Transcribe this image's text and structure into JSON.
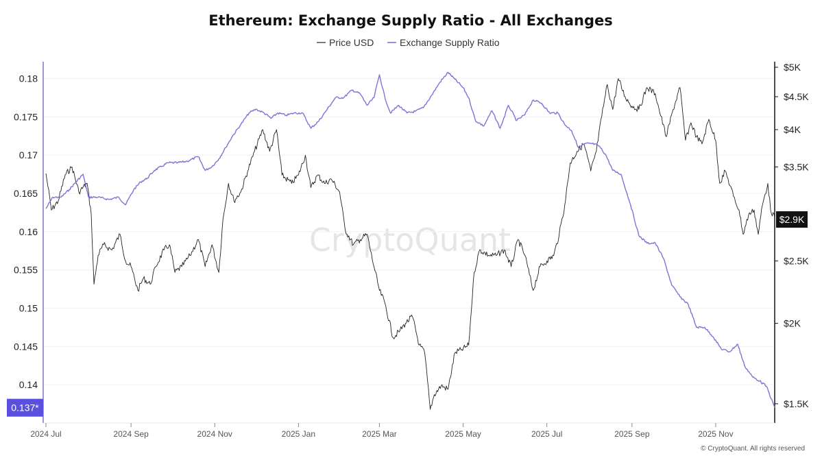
{
  "chart_data": {
    "type": "line",
    "title": "Ethereum: Exchange Supply Ratio - All Exchanges",
    "legend": {
      "placement": "top-center",
      "entries": [
        "Price USD",
        "Exchange Supply Ratio"
      ]
    },
    "watermark": "CryptoQuant",
    "credit": "© CryptoQuant. All rights reserved",
    "x_axis": {
      "type": "date",
      "range": [
        "2024-06-29",
        "2025-12-14"
      ],
      "ticks": [
        {
          "date": "2024-07-01",
          "label": "2024 Jul"
        },
        {
          "date": "2024-09-01",
          "label": "2024 Sep"
        },
        {
          "date": "2024-11-01",
          "label": "2024 Nov"
        },
        {
          "date": "2025-01-01",
          "label": "2025 Jan"
        },
        {
          "date": "2025-03-01",
          "label": "2025 Mar"
        },
        {
          "date": "2025-05-01",
          "label": "2025 May"
        },
        {
          "date": "2025-07-01",
          "label": "2025 Jul"
        },
        {
          "date": "2025-09-01",
          "label": "2025 Sep"
        },
        {
          "date": "2025-11-01",
          "label": "2025 Nov"
        }
      ]
    },
    "y_left": {
      "range": [
        0.135,
        0.1822
      ],
      "ticks": [
        {
          "value": 0.18,
          "label": "0.18"
        },
        {
          "value": 0.175,
          "label": "0.175"
        },
        {
          "value": 0.17,
          "label": "0.17"
        },
        {
          "value": 0.165,
          "label": "0.165"
        },
        {
          "value": 0.16,
          "label": "0.16"
        },
        {
          "value": 0.155,
          "label": "0.155"
        },
        {
          "value": 0.15,
          "label": "0.15"
        },
        {
          "value": 0.145,
          "label": "0.145"
        },
        {
          "value": 0.14,
          "label": "0.14"
        }
      ],
      "current": {
        "value": 0.137,
        "label": "0.137*"
      }
    },
    "y_right": {
      "scale": "log",
      "range": [
        1400,
        5100
      ],
      "ticks": [
        {
          "value": 5000,
          "label": "$5K"
        },
        {
          "value": 4500,
          "label": "$4.5K"
        },
        {
          "value": 4000,
          "label": "$4K"
        },
        {
          "value": 3500,
          "label": "$3.5K"
        },
        {
          "value": 2500,
          "label": "$2.5K"
        },
        {
          "value": 2000,
          "label": "$2K"
        },
        {
          "value": 1500,
          "label": "$1.5K"
        }
      ],
      "current": {
        "value": 2900,
        "label": "$2.9K"
      }
    },
    "colors": {
      "price": "#222222",
      "ratio": "#7b74d8",
      "badge_left": "#5b4fe0",
      "badge_right": "#111111"
    },
    "series": [
      {
        "name": "Price USD",
        "axis": "right",
        "points": [
          [
            "2024-07-01",
            3420
          ],
          [
            "2024-07-05",
            3000
          ],
          [
            "2024-07-10",
            3100
          ],
          [
            "2024-07-15",
            3400
          ],
          [
            "2024-07-20",
            3500
          ],
          [
            "2024-07-25",
            3200
          ],
          [
            "2024-07-31",
            3300
          ],
          [
            "2024-08-03",
            2950
          ],
          [
            "2024-08-05",
            2300
          ],
          [
            "2024-08-08",
            2550
          ],
          [
            "2024-08-12",
            2650
          ],
          [
            "2024-08-18",
            2600
          ],
          [
            "2024-08-24",
            2750
          ],
          [
            "2024-08-28",
            2500
          ],
          [
            "2024-09-01",
            2450
          ],
          [
            "2024-09-06",
            2250
          ],
          [
            "2024-09-10",
            2350
          ],
          [
            "2024-09-15",
            2300
          ],
          [
            "2024-09-19",
            2450
          ],
          [
            "2024-09-25",
            2600
          ],
          [
            "2024-09-29",
            2650
          ],
          [
            "2024-10-03",
            2400
          ],
          [
            "2024-10-08",
            2450
          ],
          [
            "2024-10-14",
            2550
          ],
          [
            "2024-10-20",
            2700
          ],
          [
            "2024-10-25",
            2450
          ],
          [
            "2024-10-30",
            2650
          ],
          [
            "2024-11-04",
            2400
          ],
          [
            "2024-11-07",
            2900
          ],
          [
            "2024-11-11",
            3300
          ],
          [
            "2024-11-15",
            3100
          ],
          [
            "2024-11-20",
            3200
          ],
          [
            "2024-11-25",
            3450
          ],
          [
            "2024-11-30",
            3700
          ],
          [
            "2024-12-06",
            4000
          ],
          [
            "2024-12-11",
            3700
          ],
          [
            "2024-12-16",
            4000
          ],
          [
            "2024-12-20",
            3400
          ],
          [
            "2024-12-27",
            3300
          ],
          [
            "2025-01-01",
            3400
          ],
          [
            "2025-01-06",
            3650
          ],
          [
            "2025-01-10",
            3250
          ],
          [
            "2025-01-15",
            3400
          ],
          [
            "2025-01-20",
            3300
          ],
          [
            "2025-01-25",
            3350
          ],
          [
            "2025-01-31",
            3200
          ],
          [
            "2025-02-04",
            2800
          ],
          [
            "2025-02-10",
            2650
          ],
          [
            "2025-02-15",
            2700
          ],
          [
            "2025-02-20",
            2750
          ],
          [
            "2025-02-25",
            2450
          ],
          [
            "2025-03-01",
            2250
          ],
          [
            "2025-03-05",
            2150
          ],
          [
            "2025-03-11",
            1900
          ],
          [
            "2025-03-16",
            1950
          ],
          [
            "2025-03-20",
            2000
          ],
          [
            "2025-03-25",
            2050
          ],
          [
            "2025-03-30",
            1850
          ],
          [
            "2025-04-03",
            1800
          ],
          [
            "2025-04-07",
            1470
          ],
          [
            "2025-04-10",
            1550
          ],
          [
            "2025-04-15",
            1600
          ],
          [
            "2025-04-20",
            1580
          ],
          [
            "2025-04-25",
            1800
          ],
          [
            "2025-04-30",
            1820
          ],
          [
            "2025-05-05",
            1850
          ],
          [
            "2025-05-09",
            2400
          ],
          [
            "2025-05-13",
            2600
          ],
          [
            "2025-05-20",
            2550
          ],
          [
            "2025-05-25",
            2550
          ],
          [
            "2025-05-31",
            2600
          ],
          [
            "2025-06-05",
            2450
          ],
          [
            "2025-06-10",
            2700
          ],
          [
            "2025-06-15",
            2550
          ],
          [
            "2025-06-21",
            2250
          ],
          [
            "2025-06-26",
            2450
          ],
          [
            "2025-07-01",
            2500
          ],
          [
            "2025-07-06",
            2550
          ],
          [
            "2025-07-10",
            2750
          ],
          [
            "2025-07-14",
            3050
          ],
          [
            "2025-07-18",
            3550
          ],
          [
            "2025-07-23",
            3700
          ],
          [
            "2025-07-28",
            3800
          ],
          [
            "2025-08-02",
            3450
          ],
          [
            "2025-08-06",
            3700
          ],
          [
            "2025-08-10",
            4200
          ],
          [
            "2025-08-14",
            4700
          ],
          [
            "2025-08-18",
            4300
          ],
          [
            "2025-08-22",
            4800
          ],
          [
            "2025-08-27",
            4500
          ],
          [
            "2025-09-01",
            4350
          ],
          [
            "2025-09-06",
            4300
          ],
          [
            "2025-09-12",
            4650
          ],
          [
            "2025-09-18",
            4550
          ],
          [
            "2025-09-22",
            4200
          ],
          [
            "2025-09-26",
            3900
          ],
          [
            "2025-10-01",
            4300
          ],
          [
            "2025-10-06",
            4650
          ],
          [
            "2025-10-10",
            3850
          ],
          [
            "2025-10-14",
            4100
          ],
          [
            "2025-10-18",
            3900
          ],
          [
            "2025-10-22",
            3800
          ],
          [
            "2025-10-27",
            4150
          ],
          [
            "2025-11-01",
            3850
          ],
          [
            "2025-11-04",
            3300
          ],
          [
            "2025-11-08",
            3450
          ],
          [
            "2025-11-14",
            3150
          ],
          [
            "2025-11-18",
            3000
          ],
          [
            "2025-11-21",
            2750
          ],
          [
            "2025-11-25",
            2950
          ],
          [
            "2025-11-29",
            3000
          ],
          [
            "2025-12-02",
            2750
          ],
          [
            "2025-12-05",
            3050
          ],
          [
            "2025-12-09",
            3300
          ],
          [
            "2025-12-11",
            3000
          ],
          [
            "2025-12-14",
            2920
          ]
        ]
      },
      {
        "name": "Exchange Supply Ratio",
        "axis": "left",
        "points": [
          [
            "2024-07-01",
            0.163
          ],
          [
            "2024-07-06",
            0.1645
          ],
          [
            "2024-07-12",
            0.1645
          ],
          [
            "2024-07-18",
            0.1655
          ],
          [
            "2024-07-23",
            0.1665
          ],
          [
            "2024-07-28",
            0.1675
          ],
          [
            "2024-08-01",
            0.1645
          ],
          [
            "2024-08-08",
            0.1645
          ],
          [
            "2024-08-16",
            0.1642
          ],
          [
            "2024-08-23",
            0.1645
          ],
          [
            "2024-08-28",
            0.1635
          ],
          [
            "2024-09-03",
            0.1655
          ],
          [
            "2024-09-08",
            0.1665
          ],
          [
            "2024-09-13",
            0.167
          ],
          [
            "2024-09-18",
            0.168
          ],
          [
            "2024-09-23",
            0.1685
          ],
          [
            "2024-09-28",
            0.169
          ],
          [
            "2024-10-05",
            0.169
          ],
          [
            "2024-10-12",
            0.1692
          ],
          [
            "2024-10-20",
            0.1698
          ],
          [
            "2024-10-25",
            0.168
          ],
          [
            "2024-10-30",
            0.1685
          ],
          [
            "2024-11-04",
            0.1695
          ],
          [
            "2024-11-09",
            0.171
          ],
          [
            "2024-11-14",
            0.1725
          ],
          [
            "2024-11-20",
            0.174
          ],
          [
            "2024-11-26",
            0.1755
          ],
          [
            "2024-12-01",
            0.176
          ],
          [
            "2024-12-07",
            0.1755
          ],
          [
            "2024-12-12",
            0.1748
          ],
          [
            "2024-12-17",
            0.1755
          ],
          [
            "2024-12-23",
            0.1752
          ],
          [
            "2024-12-29",
            0.1755
          ],
          [
            "2025-01-04",
            0.1755
          ],
          [
            "2025-01-10",
            0.1735
          ],
          [
            "2025-01-16",
            0.1745
          ],
          [
            "2025-01-22",
            0.176
          ],
          [
            "2025-01-28",
            0.1775
          ],
          [
            "2025-02-03",
            0.1775
          ],
          [
            "2025-02-09",
            0.1785
          ],
          [
            "2025-02-15",
            0.178
          ],
          [
            "2025-02-20",
            0.1765
          ],
          [
            "2025-02-25",
            0.1775
          ],
          [
            "2025-03-01",
            0.1805
          ],
          [
            "2025-03-05",
            0.1775
          ],
          [
            "2025-03-09",
            0.1755
          ],
          [
            "2025-03-15",
            0.1765
          ],
          [
            "2025-03-21",
            0.1755
          ],
          [
            "2025-03-27",
            0.1757
          ],
          [
            "2025-04-02",
            0.1762
          ],
          [
            "2025-04-08",
            0.1778
          ],
          [
            "2025-04-14",
            0.1795
          ],
          [
            "2025-04-20",
            0.1808
          ],
          [
            "2025-04-25",
            0.1799
          ],
          [
            "2025-05-01",
            0.1788
          ],
          [
            "2025-05-05",
            0.1775
          ],
          [
            "2025-05-10",
            0.1745
          ],
          [
            "2025-05-16",
            0.1738
          ],
          [
            "2025-05-22",
            0.1758
          ],
          [
            "2025-05-28",
            0.1735
          ],
          [
            "2025-06-03",
            0.1765
          ],
          [
            "2025-06-09",
            0.1745
          ],
          [
            "2025-06-15",
            0.1753
          ],
          [
            "2025-06-21",
            0.1772
          ],
          [
            "2025-06-27",
            0.1768
          ],
          [
            "2025-07-03",
            0.1755
          ],
          [
            "2025-07-09",
            0.1755
          ],
          [
            "2025-07-14",
            0.174
          ],
          [
            "2025-07-19",
            0.1732
          ],
          [
            "2025-07-24",
            0.171
          ],
          [
            "2025-07-29",
            0.1715
          ],
          [
            "2025-08-03",
            0.1715
          ],
          [
            "2025-08-08",
            0.1712
          ],
          [
            "2025-08-13",
            0.17
          ],
          [
            "2025-08-18",
            0.168
          ],
          [
            "2025-08-24",
            0.1675
          ],
          [
            "2025-08-31",
            0.1635
          ],
          [
            "2025-09-06",
            0.1595
          ],
          [
            "2025-09-12",
            0.1585
          ],
          [
            "2025-09-18",
            0.1585
          ],
          [
            "2025-09-24",
            0.1565
          ],
          [
            "2025-09-30",
            0.153
          ],
          [
            "2025-10-06",
            0.1515
          ],
          [
            "2025-10-12",
            0.1505
          ],
          [
            "2025-10-18",
            0.1475
          ],
          [
            "2025-10-24",
            0.1475
          ],
          [
            "2025-10-30",
            0.1463
          ],
          [
            "2025-11-05",
            0.1447
          ],
          [
            "2025-11-11",
            0.1443
          ],
          [
            "2025-11-17",
            0.1453
          ],
          [
            "2025-11-22",
            0.1425
          ],
          [
            "2025-11-28",
            0.141
          ],
          [
            "2025-12-03",
            0.1405
          ],
          [
            "2025-12-08",
            0.1398
          ],
          [
            "2025-12-14",
            0.137
          ]
        ]
      }
    ]
  }
}
